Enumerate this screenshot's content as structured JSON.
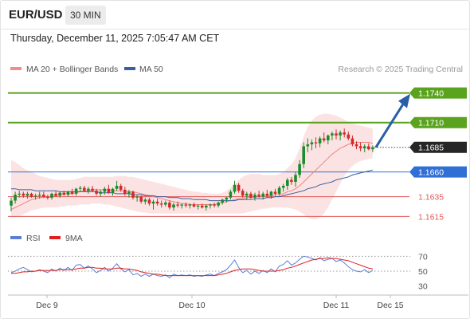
{
  "header": {
    "symbol": "EUR/USD",
    "timeframe": "30 MIN",
    "datetime": "Thursday, December 11, 2025 7:05:47 AM CET"
  },
  "legend": {
    "bands": {
      "label": "MA 20 + Bollinger Bands",
      "color": "#f28b8b"
    },
    "ma50": {
      "label": "MA 50",
      "color": "#3a5fa0"
    },
    "credit": "Research © 2025 Trading Central"
  },
  "colors": {
    "green": "#5aa31e",
    "red_level": "#e05a5a",
    "blue_level": "#2f6fd6",
    "up": "#1a8c2a",
    "down": "#d12a2a",
    "arrow": "#2a5ea8"
  },
  "chart_data": [
    {
      "type": "candlestick",
      "ylim": [
        1.1604,
        1.1755
      ],
      "x": [
        "Dec 9",
        "Dec 10",
        "Dec 11",
        "Dec 15"
      ],
      "levels": [
        {
          "value": 1.174,
          "label": "1.1740",
          "kind": "resistance-2"
        },
        {
          "value": 1.171,
          "label": "1.1710",
          "kind": "resistance-1"
        },
        {
          "value": 1.1685,
          "label": "1.1685",
          "kind": "last"
        },
        {
          "value": 1.166,
          "label": "1.1660",
          "kind": "pivot"
        },
        {
          "value": 1.1635,
          "label": "1.1635",
          "kind": "support-1"
        },
        {
          "value": 1.1615,
          "label": "1.1615",
          "kind": "support-2"
        }
      ],
      "forecast": {
        "from": 1.1685,
        "to": 1.174
      },
      "candles": [
        [
          1.1626,
          1.1634,
          1.162,
          1.1631
        ],
        [
          1.1631,
          1.164,
          1.1628,
          1.1637
        ],
        [
          1.1637,
          1.1641,
          1.1634,
          1.1638
        ],
        [
          1.1638,
          1.164,
          1.1634,
          1.1636
        ],
        [
          1.1636,
          1.164,
          1.1633,
          1.1638
        ],
        [
          1.1638,
          1.1639,
          1.1634,
          1.1635
        ],
        [
          1.1635,
          1.1638,
          1.1632,
          1.1636
        ],
        [
          1.1636,
          1.164,
          1.1633,
          1.1637
        ],
        [
          1.1637,
          1.164,
          1.1634,
          1.1635
        ],
        [
          1.1635,
          1.1637,
          1.1632,
          1.1634
        ],
        [
          1.1634,
          1.1639,
          1.1632,
          1.1638
        ],
        [
          1.1638,
          1.1641,
          1.1635,
          1.1636
        ],
        [
          1.1636,
          1.164,
          1.1634,
          1.1639
        ],
        [
          1.1639,
          1.1641,
          1.1636,
          1.1637
        ],
        [
          1.1637,
          1.1641,
          1.1635,
          1.164
        ],
        [
          1.164,
          1.1643,
          1.1637,
          1.1638
        ],
        [
          1.1638,
          1.1644,
          1.1636,
          1.1643
        ],
        [
          1.1643,
          1.1646,
          1.164,
          1.1644
        ],
        [
          1.1644,
          1.1646,
          1.164,
          1.1641
        ],
        [
          1.1641,
          1.1645,
          1.1638,
          1.1643
        ],
        [
          1.1643,
          1.1646,
          1.164,
          1.1641
        ],
        [
          1.1641,
          1.1643,
          1.1636,
          1.1638
        ],
        [
          1.1638,
          1.1642,
          1.1635,
          1.164
        ],
        [
          1.164,
          1.1645,
          1.1637,
          1.1643
        ],
        [
          1.1643,
          1.1647,
          1.1638,
          1.1639
        ],
        [
          1.1639,
          1.1644,
          1.1636,
          1.1643
        ],
        [
          1.1643,
          1.1651,
          1.1641,
          1.1646
        ],
        [
          1.1646,
          1.1648,
          1.164,
          1.1642
        ],
        [
          1.1642,
          1.1645,
          1.1636,
          1.1638
        ],
        [
          1.1638,
          1.1642,
          1.1634,
          1.164
        ],
        [
          1.164,
          1.1641,
          1.1632,
          1.1634
        ],
        [
          1.1634,
          1.1637,
          1.163,
          1.1635
        ],
        [
          1.1635,
          1.1636,
          1.1628,
          1.163
        ],
        [
          1.163,
          1.1634,
          1.1627,
          1.1632
        ],
        [
          1.1632,
          1.1634,
          1.1626,
          1.1628
        ],
        [
          1.1628,
          1.1632,
          1.1622,
          1.163
        ],
        [
          1.163,
          1.1633,
          1.1626,
          1.1628
        ],
        [
          1.1628,
          1.1631,
          1.1624,
          1.1627
        ],
        [
          1.1627,
          1.1631,
          1.1625,
          1.1629
        ],
        [
          1.1629,
          1.1631,
          1.1622,
          1.1624
        ],
        [
          1.1624,
          1.1629,
          1.1621,
          1.1627
        ],
        [
          1.1627,
          1.163,
          1.1624,
          1.1626
        ],
        [
          1.1626,
          1.1628,
          1.1623,
          1.1627
        ],
        [
          1.1627,
          1.1629,
          1.1624,
          1.1626
        ],
        [
          1.1626,
          1.1628,
          1.1623,
          1.1627
        ],
        [
          1.1627,
          1.1629,
          1.1624,
          1.1625
        ],
        [
          1.1625,
          1.1627,
          1.1622,
          1.1626
        ],
        [
          1.1626,
          1.1628,
          1.1623,
          1.1624
        ],
        [
          1.1624,
          1.1627,
          1.1621,
          1.1626
        ],
        [
          1.1626,
          1.1628,
          1.1623,
          1.1627
        ],
        [
          1.1627,
          1.1629,
          1.1624,
          1.1626
        ],
        [
          1.1626,
          1.163,
          1.1624,
          1.1629
        ],
        [
          1.1629,
          1.1633,
          1.1627,
          1.1632
        ],
        [
          1.1632,
          1.1635,
          1.1629,
          1.1634
        ],
        [
          1.1634,
          1.1642,
          1.1632,
          1.164
        ],
        [
          1.164,
          1.1651,
          1.1638,
          1.1647
        ],
        [
          1.1647,
          1.1649,
          1.1639,
          1.1641
        ],
        [
          1.1641,
          1.1643,
          1.1634,
          1.1636
        ],
        [
          1.1636,
          1.164,
          1.1632,
          1.1638
        ],
        [
          1.1638,
          1.164,
          1.1633,
          1.1634
        ],
        [
          1.1634,
          1.1639,
          1.1631,
          1.1637
        ],
        [
          1.1637,
          1.1641,
          1.1634,
          1.1635
        ],
        [
          1.1635,
          1.164,
          1.1632,
          1.1638
        ],
        [
          1.1638,
          1.1642,
          1.1634,
          1.1636
        ],
        [
          1.1636,
          1.1641,
          1.1633,
          1.164
        ],
        [
          1.164,
          1.1643,
          1.1636,
          1.1638
        ],
        [
          1.1638,
          1.1646,
          1.1636,
          1.1644
        ],
        [
          1.1644,
          1.1648,
          1.164,
          1.1646
        ],
        [
          1.1646,
          1.1654,
          1.1642,
          1.1652
        ],
        [
          1.1652,
          1.1655,
          1.1647,
          1.165
        ],
        [
          1.165,
          1.166,
          1.1645,
          1.1657
        ],
        [
          1.1657,
          1.1672,
          1.1654,
          1.1668
        ],
        [
          1.1668,
          1.169,
          1.1664,
          1.1686
        ],
        [
          1.1686,
          1.1694,
          1.168,
          1.1688
        ],
        [
          1.1688,
          1.1693,
          1.1682,
          1.169
        ],
        [
          1.169,
          1.1695,
          1.1684,
          1.1689
        ],
        [
          1.1689,
          1.1696,
          1.1685,
          1.1694
        ],
        [
          1.1694,
          1.17,
          1.169,
          1.1692
        ],
        [
          1.1692,
          1.1698,
          1.1688,
          1.1697
        ],
        [
          1.1697,
          1.1701,
          1.1692,
          1.1699
        ],
        [
          1.1699,
          1.1703,
          1.1693,
          1.1697
        ],
        [
          1.1697,
          1.1702,
          1.1692,
          1.17
        ],
        [
          1.17,
          1.1704,
          1.1695,
          1.1698
        ],
        [
          1.1698,
          1.1701,
          1.1692,
          1.1694
        ],
        [
          1.1694,
          1.1697,
          1.1686,
          1.1688
        ],
        [
          1.1688,
          1.1691,
          1.1683,
          1.1686
        ],
        [
          1.1686,
          1.169,
          1.1681,
          1.1684
        ],
        [
          1.1684,
          1.1688,
          1.168,
          1.1686
        ],
        [
          1.1686,
          1.1689,
          1.1682,
          1.1683
        ],
        [
          1.1683,
          1.1687,
          1.168,
          1.1685
        ]
      ],
      "ma20": [
        1.1622,
        1.1624,
        1.1626,
        1.1628,
        1.163,
        1.1632,
        1.1633,
        1.1634,
        1.1634,
        1.1634,
        1.1635,
        1.1636,
        1.1637,
        1.1638,
        1.1638,
        1.1638,
        1.1639,
        1.164,
        1.1641,
        1.1641,
        1.1642,
        1.1642,
        1.1642,
        1.1642,
        1.1642,
        1.1641,
        1.1641,
        1.1641,
        1.1641,
        1.164,
        1.164,
        1.1639,
        1.1638,
        1.1637,
        1.1636,
        1.1635,
        1.1634,
        1.1633,
        1.1632,
        1.1631,
        1.163,
        1.1629,
        1.1628,
        1.1628,
        1.1627,
        1.1627,
        1.1627,
        1.1627,
        1.1627,
        1.1627,
        1.1627,
        1.1628,
        1.1629,
        1.163,
        1.1631,
        1.1632,
        1.1633,
        1.1633,
        1.1634,
        1.1634,
        1.1635,
        1.1635,
        1.1635,
        1.1636,
        1.1636,
        1.1637,
        1.1637,
        1.1638,
        1.164,
        1.1641,
        1.1643,
        1.1646,
        1.165,
        1.1654,
        1.1658,
        1.1662,
        1.1666,
        1.167,
        1.1674,
        1.1678,
        1.1681,
        1.1684,
        1.1686,
        1.1688,
        1.1689,
        1.169,
        1.169,
        1.169,
        1.169,
        1.1689
      ],
      "ma50": [
        1.1643,
        1.1643,
        1.1642,
        1.1642,
        1.1642,
        1.1642,
        1.1641,
        1.1641,
        1.1641,
        1.1641,
        1.1641,
        1.1641,
        1.164,
        1.164,
        1.164,
        1.164,
        1.164,
        1.164,
        1.164,
        1.164,
        1.164,
        1.164,
        1.1639,
        1.1639,
        1.1639,
        1.1639,
        1.1638,
        1.1638,
        1.1638,
        1.1638,
        1.1637,
        1.1637,
        1.1637,
        1.1636,
        1.1636,
        1.1636,
        1.1635,
        1.1635,
        1.1635,
        1.1634,
        1.1634,
        1.1634,
        1.1633,
        1.1633,
        1.1633,
        1.1632,
        1.1632,
        1.1632,
        1.1632,
        1.1631,
        1.1631,
        1.1631,
        1.1631,
        1.1631,
        1.1631,
        1.1631,
        1.1632,
        1.1632,
        1.1632,
        1.1632,
        1.1633,
        1.1633,
        1.1633,
        1.1634,
        1.1634,
        1.1635,
        1.1635,
        1.1636,
        1.1637,
        1.1638,
        1.1639,
        1.164,
        1.1641,
        1.1643,
        1.1644,
        1.1645,
        1.1647,
        1.1648,
        1.1649,
        1.165,
        1.1652,
        1.1653,
        1.1654,
        1.1655,
        1.1657,
        1.1658,
        1.1659,
        1.166,
        1.1661,
        1.1662
      ],
      "bb_upper": [
        1.1672,
        1.167,
        1.1667,
        1.1664,
        1.1662,
        1.166,
        1.1658,
        1.1656,
        1.1655,
        1.1654,
        1.1653,
        1.1652,
        1.1652,
        1.1652,
        1.1652,
        1.1652,
        1.1653,
        1.1654,
        1.1655,
        1.1655,
        1.1655,
        1.1655,
        1.1655,
        1.1655,
        1.1655,
        1.1655,
        1.1656,
        1.1656,
        1.1656,
        1.1655,
        1.1655,
        1.1654,
        1.1653,
        1.1652,
        1.1651,
        1.165,
        1.1649,
        1.1648,
        1.1647,
        1.1646,
        1.1645,
        1.1644,
        1.1643,
        1.1642,
        1.1641,
        1.164,
        1.164,
        1.1639,
        1.1639,
        1.1638,
        1.1638,
        1.1638,
        1.1639,
        1.1641,
        1.1644,
        1.1648,
        1.1652,
        1.1655,
        1.1657,
        1.1658,
        1.1658,
        1.1658,
        1.1657,
        1.1657,
        1.1657,
        1.1657,
        1.1658,
        1.166,
        1.1664,
        1.1668,
        1.1674,
        1.1684,
        1.1696,
        1.1706,
        1.1712,
        1.1716,
        1.1718,
        1.1719,
        1.1719,
        1.1718,
        1.1717,
        1.1715,
        1.1713,
        1.1711,
        1.1709,
        1.1708,
        1.1707,
        1.1706,
        1.1705,
        1.1704
      ],
      "bb_lower": [
        1.1614,
        1.1614,
        1.1615,
        1.1617,
        1.1619,
        1.1621,
        1.1622,
        1.1623,
        1.1624,
        1.1624,
        1.1624,
        1.1624,
        1.1625,
        1.1625,
        1.1626,
        1.1626,
        1.1626,
        1.1627,
        1.1627,
        1.1627,
        1.1628,
        1.1628,
        1.1628,
        1.1627,
        1.1627,
        1.1626,
        1.1625,
        1.1624,
        1.1623,
        1.1622,
        1.1621,
        1.162,
        1.1619,
        1.1619,
        1.1618,
        1.1618,
        1.1618,
        1.1618,
        1.1618,
        1.1618,
        1.1618,
        1.1618,
        1.1618,
        1.1618,
        1.1618,
        1.1618,
        1.1618,
        1.1618,
        1.1618,
        1.1618,
        1.1618,
        1.1618,
        1.1618,
        1.1618,
        1.1618,
        1.1618,
        1.1618,
        1.1618,
        1.1619,
        1.162,
        1.1621,
        1.1622,
        1.1623,
        1.1623,
        1.1624,
        1.1624,
        1.1624,
        1.1624,
        1.1624,
        1.1623,
        1.1622,
        1.162,
        1.1617,
        1.1614,
        1.1612,
        1.1612,
        1.1614,
        1.1618,
        1.1624,
        1.1632,
        1.164,
        1.1648,
        1.1656,
        1.1662,
        1.1666,
        1.1669,
        1.1671,
        1.1672,
        1.1673,
        1.1674
      ]
    },
    {
      "type": "line",
      "title": "RSI",
      "ylim": [
        20,
        80
      ],
      "yticks": [
        30,
        50,
        70
      ],
      "series": [
        {
          "name": "RSI",
          "color": "#5b7fd6",
          "values": [
            48,
            50,
            53,
            55,
            52,
            49,
            50,
            52,
            50,
            48,
            53,
            50,
            54,
            51,
            55,
            51,
            58,
            59,
            54,
            57,
            53,
            48,
            51,
            55,
            50,
            54,
            60,
            53,
            49,
            52,
            45,
            47,
            43,
            46,
            43,
            46,
            44,
            43,
            45,
            41,
            46,
            44,
            45,
            44,
            45,
            43,
            44,
            43,
            45,
            46,
            44,
            47,
            49,
            52,
            58,
            65,
            55,
            48,
            51,
            46,
            50,
            47,
            51,
            48,
            53,
            49,
            57,
            59,
            64,
            58,
            61,
            66,
            70,
            69,
            67,
            65,
            68,
            64,
            66,
            67,
            63,
            65,
            61,
            56,
            52,
            50,
            49,
            52,
            48,
            51
          ]
        },
        {
          "name": "9MA",
          "color": "#e02020",
          "values": [
            47,
            47,
            48,
            49,
            49,
            50,
            50,
            51,
            51,
            51,
            51,
            51,
            52,
            52,
            52,
            52,
            53,
            54,
            54,
            55,
            55,
            54,
            54,
            53,
            53,
            53,
            54,
            54,
            53,
            53,
            52,
            51,
            49,
            48,
            47,
            46,
            46,
            45,
            44,
            44,
            44,
            44,
            44,
            44,
            44,
            44,
            44,
            44,
            44,
            44,
            44,
            45,
            46,
            47,
            49,
            51,
            52,
            53,
            53,
            53,
            52,
            51,
            50,
            50,
            50,
            50,
            51,
            52,
            54,
            55,
            57,
            59,
            61,
            63,
            65,
            66,
            67,
            67,
            68,
            67,
            67,
            66,
            65,
            64,
            62,
            60,
            58,
            56,
            54,
            53
          ]
        }
      ]
    }
  ],
  "rsi_legend": {
    "rsi": "RSI",
    "ma": "9MA"
  }
}
